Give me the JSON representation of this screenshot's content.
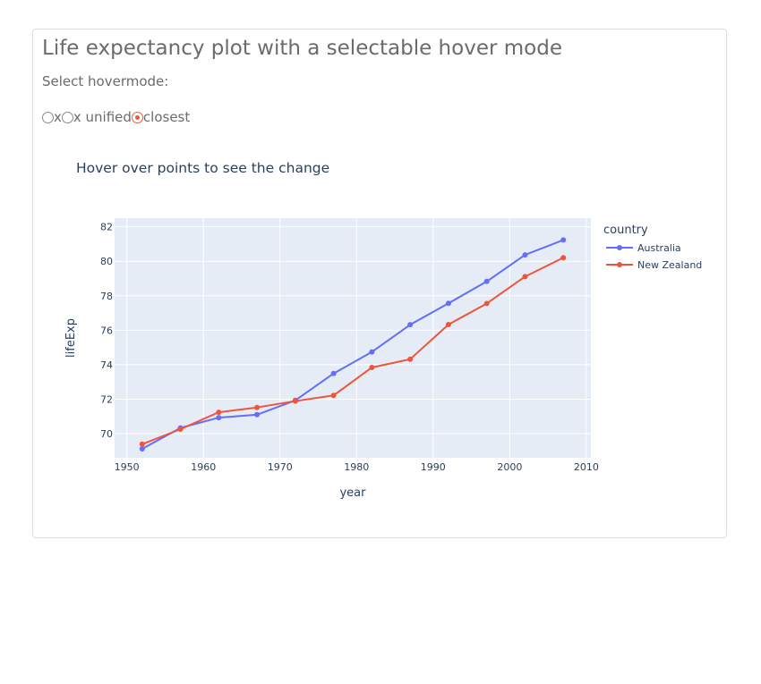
{
  "app": {
    "title": "Life expectancy plot with a selectable hover mode",
    "hovermode_label": "Select hovermode:"
  },
  "hovermode": {
    "options": [
      {
        "label": "x",
        "selected": false
      },
      {
        "label": "x unified",
        "selected": false
      },
      {
        "label": "closest",
        "selected": true
      }
    ]
  },
  "colors": {
    "accent": "#ee5a35",
    "plot_bg": "#e5ecf6",
    "australia": "#636efa",
    "new_zealand": "#ef553b"
  },
  "chart_data": {
    "type": "line",
    "title": "Hover over points to see the change",
    "xlabel": "year",
    "ylabel": "lifeExp",
    "xlim": [
      1948.4,
      2010.6
    ],
    "ylim": [
      68.6,
      82.5
    ],
    "xticks": [
      1950,
      1960,
      1970,
      1980,
      1990,
      2000,
      2010
    ],
    "yticks": [
      70,
      72,
      74,
      76,
      78,
      80,
      82
    ],
    "grid": true,
    "legend_title": "country",
    "legend_position": "right",
    "x": [
      1952,
      1957,
      1962,
      1967,
      1972,
      1977,
      1982,
      1987,
      1992,
      1997,
      2002,
      2007
    ],
    "series": [
      {
        "name": "Australia",
        "color": "#636efa",
        "values": [
          69.12,
          70.33,
          70.93,
          71.1,
          71.93,
          73.49,
          74.74,
          76.32,
          77.56,
          78.83,
          80.37,
          81.235
        ]
      },
      {
        "name": "New Zealand",
        "color": "#ef553b",
        "values": [
          69.39,
          70.26,
          71.24,
          71.52,
          71.89,
          72.22,
          73.84,
          74.32,
          76.33,
          77.55,
          79.11,
          80.204
        ]
      }
    ]
  }
}
